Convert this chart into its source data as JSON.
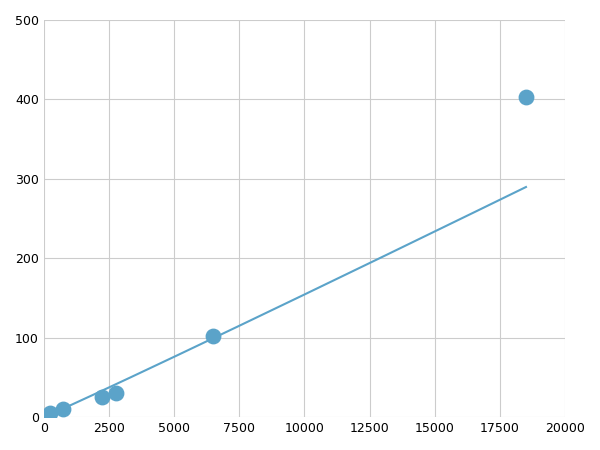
{
  "x": [
    250,
    750,
    2250,
    2750,
    6500,
    18500
  ],
  "y": [
    5,
    10,
    25,
    30,
    102,
    403
  ],
  "line_color": "#5ba3c9",
  "marker_color": "#5ba3c9",
  "marker_size": 6,
  "xlim": [
    0,
    20000
  ],
  "ylim": [
    0,
    500
  ],
  "xticks": [
    0,
    2500,
    5000,
    7500,
    10000,
    12500,
    15000,
    17500,
    20000
  ],
  "yticks": [
    0,
    100,
    200,
    300,
    400,
    500
  ],
  "grid_color": "#cccccc",
  "background_color": "#ffffff",
  "line_width": 1.5,
  "figsize": [
    6.0,
    4.5
  ],
  "dpi": 100
}
